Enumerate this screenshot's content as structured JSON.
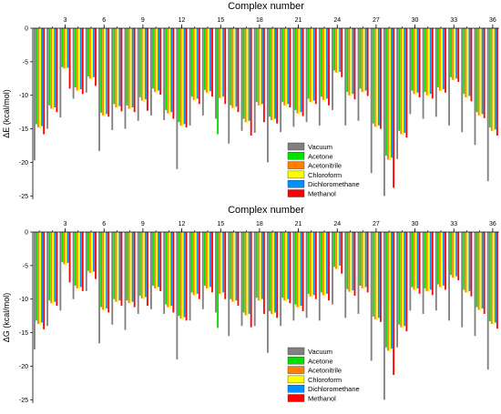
{
  "chart_data": [
    {
      "type": "bar",
      "title": "Complex number",
      "ylabel": "ΔE (kcal/mol)",
      "xlabel": "",
      "x_tick_labels": [
        "3",
        "6",
        "9",
        "12",
        "15",
        "18",
        "21",
        "24",
        "27",
        "30",
        "33",
        "36"
      ],
      "y_ticks": [
        0,
        -5,
        -10,
        -15,
        -20,
        -25
      ],
      "ylim": [
        -25.5,
        0
      ],
      "categories": [
        1,
        2,
        3,
        4,
        5,
        6,
        7,
        8,
        9,
        10,
        11,
        12,
        13,
        14,
        15,
        16,
        17,
        18,
        19,
        20,
        21,
        22,
        23,
        24,
        25,
        26,
        27,
        28,
        29,
        30,
        31,
        32,
        33,
        34,
        35,
        36
      ],
      "grid": false,
      "legend_position": "lower-center",
      "series": [
        {
          "name": "Vacuum",
          "color": "#808080",
          "values": [
            -19.7,
            -15,
            -13.3,
            -10.5,
            -9.6,
            -18.3,
            -15.2,
            -15,
            -13.8,
            -13,
            -13.7,
            -21,
            -14.5,
            -13,
            -13.5,
            -17.2,
            -15.3,
            -15.6,
            -20,
            -15.5,
            -14.7,
            -14,
            -14.5,
            -12.2,
            -14.5,
            -13.8,
            -21.6,
            -25,
            -19.5,
            -12.8,
            -13.5,
            -13.2,
            -14.5,
            -15.5,
            -17.4,
            -22.8
          ]
        },
        {
          "name": "Acetone",
          "color": "#00e000",
          "values": [
            -14.3,
            -11.5,
            -5.8,
            -8.8,
            -7.2,
            -12.6,
            -11.3,
            -11.5,
            -10.3,
            -9,
            -12.2,
            -14,
            -10.2,
            -9.2,
            -15.8,
            -11.5,
            -13.5,
            -11,
            -13.2,
            -11,
            -12.2,
            -10.5,
            -10.2,
            -6.3,
            -9.5,
            -9,
            -14.2,
            -19,
            -15.3,
            -9.3,
            -9.5,
            -8.8,
            -7.3,
            -9.8,
            -12.5,
            -14.8
          ]
        },
        {
          "name": "Acetonitrile",
          "color": "#ff8000",
          "values": [
            -14.8,
            -12,
            -6,
            -9.3,
            -7.5,
            -13,
            -11.8,
            -12,
            -10.8,
            -9.5,
            -12.7,
            -14.5,
            -10.7,
            -9.6,
            -10.4,
            -11.9,
            -14,
            -11.5,
            -13.7,
            -11.5,
            -12.7,
            -11,
            -10.7,
            -6.6,
            -10,
            -9.5,
            -14.7,
            -19.6,
            -15.8,
            -9.8,
            -10,
            -9.3,
            -7.7,
            -10.3,
            -13,
            -15.3
          ]
        },
        {
          "name": "Chloroform",
          "color": "#ffff00",
          "values": [
            -14.9,
            -12.1,
            -6.1,
            -9.4,
            -7.6,
            -13.1,
            -11.9,
            -12.1,
            -10.9,
            -9.6,
            -12.8,
            -14.6,
            -10.8,
            -9.7,
            -10.5,
            -12,
            -14.1,
            -11.6,
            -13.8,
            -11.6,
            -12.8,
            -11.1,
            -10.8,
            -6.7,
            -10.1,
            -9.6,
            -14.8,
            -19.7,
            -15.9,
            -9.9,
            -10.1,
            -9.4,
            -7.8,
            -10.4,
            -13.1,
            -15.4
          ]
        },
        {
          "name": "Dichloromethane",
          "color": "#0090ff",
          "values": [
            -14.6,
            -11.8,
            -5.9,
            -9.1,
            -7.3,
            -12.8,
            -11.6,
            -11.8,
            -10.6,
            -9.3,
            -12.5,
            -14.3,
            -10.5,
            -9.4,
            -10.2,
            -11.7,
            -13.8,
            -11.3,
            -13.5,
            -11.3,
            -12.5,
            -10.8,
            -10.5,
            -6.5,
            -9.8,
            -9.3,
            -14.5,
            -19.3,
            -15.6,
            -9.6,
            -9.8,
            -9.1,
            -7.5,
            -10.1,
            -12.8,
            -15.1
          ]
        },
        {
          "name": "Methanol",
          "color": "#ff0000",
          "values": [
            -15.8,
            -12.5,
            -9,
            -9.8,
            -8.6,
            -13.2,
            -12.4,
            -12.5,
            -12.3,
            -9.9,
            -13.5,
            -14.8,
            -11.3,
            -10.2,
            -11.3,
            -12.5,
            -16,
            -14,
            -14.2,
            -11.8,
            -13.1,
            -11.3,
            -11.5,
            -7.3,
            -10.6,
            -10.1,
            -15,
            -23.8,
            -16.3,
            -10.3,
            -10.5,
            -9.6,
            -8,
            -10.9,
            -13.4,
            -16
          ]
        }
      ]
    },
    {
      "type": "bar",
      "title": "Complex number",
      "ylabel": "ΔG (kcal/mol)",
      "xlabel": "",
      "x_tick_labels": [
        "3",
        "6",
        "9",
        "12",
        "15",
        "18",
        "21",
        "24",
        "27",
        "30",
        "33",
        "36"
      ],
      "y_ticks": [
        0,
        -5,
        -10,
        -15,
        -20,
        -25
      ],
      "ylim": [
        -25.5,
        0
      ],
      "categories": [
        1,
        2,
        3,
        4,
        5,
        6,
        7,
        8,
        9,
        10,
        11,
        12,
        13,
        14,
        15,
        16,
        17,
        18,
        19,
        20,
        21,
        22,
        23,
        24,
        25,
        26,
        27,
        28,
        29,
        30,
        31,
        32,
        33,
        34,
        35,
        36
      ],
      "grid": false,
      "legend_position": "lower-center",
      "series": [
        {
          "name": "Vacuum",
          "color": "#808080",
          "values": [
            -17.5,
            -14,
            -11.7,
            -10,
            -8.8,
            -16.6,
            -13.8,
            -14.6,
            -12.2,
            -11.5,
            -12.2,
            -19,
            -13.2,
            -11.5,
            -12,
            -15.5,
            -14,
            -14,
            -18,
            -14,
            -13.2,
            -12.8,
            -13.2,
            -10.8,
            -12.8,
            -12.2,
            -19.2,
            -25,
            -17.2,
            -11.7,
            -12.2,
            -11.7,
            -13.2,
            -14.2,
            -15.5,
            -20.5
          ]
        },
        {
          "name": "Acetone",
          "color": "#00e000",
          "values": [
            -13.2,
            -10.2,
            -4.5,
            -8,
            -5.8,
            -11.2,
            -10,
            -10.2,
            -9.5,
            -8,
            -10.8,
            -12.5,
            -9,
            -8,
            -14.3,
            -10,
            -12,
            -9.8,
            -11.8,
            -9.8,
            -10.8,
            -9.2,
            -9,
            -5.2,
            -8.5,
            -8,
            -12.6,
            -17.2,
            -13.8,
            -8.2,
            -8.4,
            -7.8,
            -6.4,
            -8.6,
            -11.2,
            -13.3
          ]
        },
        {
          "name": "Acetonitrile",
          "color": "#ff8000",
          "values": [
            -13.7,
            -10.6,
            -4.8,
            -8.4,
            -6.1,
            -11.6,
            -10.4,
            -10.6,
            -9.9,
            -8.4,
            -11.2,
            -12.9,
            -9.4,
            -8.4,
            -9.2,
            -10.4,
            -12.4,
            -10.2,
            -12.2,
            -10.2,
            -11.2,
            -9.6,
            -9.4,
            -5.5,
            -8.9,
            -8.4,
            -13,
            -17.7,
            -14.2,
            -8.6,
            -8.8,
            -8.2,
            -6.8,
            -9,
            -11.6,
            -13.7
          ]
        },
        {
          "name": "Chloroform",
          "color": "#ffff00",
          "values": [
            -13.8,
            -10.7,
            -4.9,
            -8.5,
            -6.2,
            -11.7,
            -10.5,
            -10.7,
            -10,
            -8.5,
            -11.3,
            -13,
            -9.5,
            -8.5,
            -9.3,
            -10.5,
            -12.5,
            -10.3,
            -12.3,
            -10.3,
            -11.3,
            -9.7,
            -9.5,
            -5.6,
            -9,
            -8.5,
            -13.1,
            -17.8,
            -14.3,
            -8.7,
            -8.9,
            -8.3,
            -6.9,
            -9.1,
            -11.7,
            -13.8
          ]
        },
        {
          "name": "Dichloromethane",
          "color": "#0090ff",
          "values": [
            -13.5,
            -10.4,
            -4.6,
            -8.2,
            -5.9,
            -11.4,
            -10.2,
            -10.4,
            -9.7,
            -8.2,
            -11,
            -12.7,
            -9.2,
            -8.2,
            -9,
            -10.2,
            -12.2,
            -10,
            -12,
            -10,
            -11,
            -9.4,
            -9.2,
            -5,
            -8.7,
            -8.2,
            -12.8,
            -17.4,
            -14,
            -8.4,
            -8.6,
            -8,
            -6.6,
            -8.8,
            -11.4,
            -13.5
          ]
        },
        {
          "name": "Methanol",
          "color": "#ff0000",
          "values": [
            -14.5,
            -11,
            -7.5,
            -8.8,
            -7,
            -12,
            -11,
            -11.2,
            -11,
            -8.8,
            -12,
            -13.2,
            -10,
            -9,
            -10,
            -11,
            -14.2,
            -12.2,
            -12.8,
            -10.6,
            -11.8,
            -10,
            -10.2,
            -6.2,
            -9.5,
            -9,
            -13.4,
            -21.3,
            -14.8,
            -9.2,
            -9.4,
            -8.6,
            -7.2,
            -9.6,
            -12.2,
            -14.4
          ]
        }
      ]
    }
  ]
}
